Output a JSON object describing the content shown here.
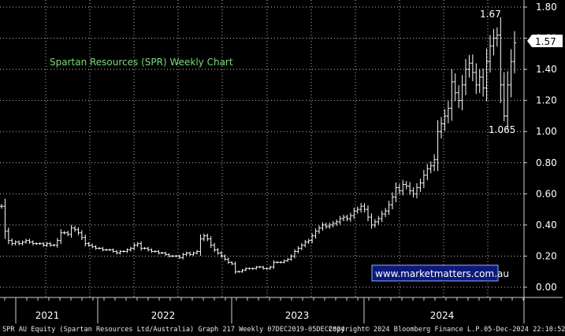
{
  "chart_data": {
    "type": "bar",
    "subtype": "ohlc-weekly",
    "title": "Spartan Resources (SPR) Weekly Chart",
    "watermark": "www.marketmatters.com.au",
    "y_ticks": [
      "1.80",
      "1.60",
      "1.40",
      "1.20",
      "1.00",
      "0.80",
      "0.60",
      "0.40",
      "0.20",
      "0.00"
    ],
    "ylim": [
      -0.06,
      1.86
    ],
    "x_labels": [
      "2021",
      "2022",
      "2023",
      "2024"
    ],
    "last_price_label": "1.57",
    "last_price": 1.57,
    "annotations": [
      {
        "text": "1.67",
        "value": 1.67
      },
      {
        "text": "1.065",
        "value": 1.065
      }
    ],
    "grid": true,
    "closes": [
      0.52,
      0.36,
      0.3,
      0.28,
      0.29,
      0.28,
      0.29,
      0.3,
      0.29,
      0.28,
      0.28,
      0.28,
      0.27,
      0.28,
      0.27,
      0.27,
      0.3,
      0.35,
      0.35,
      0.34,
      0.38,
      0.37,
      0.35,
      0.32,
      0.28,
      0.27,
      0.26,
      0.25,
      0.25,
      0.24,
      0.24,
      0.24,
      0.23,
      0.22,
      0.23,
      0.23,
      0.24,
      0.25,
      0.27,
      0.28,
      0.25,
      0.25,
      0.24,
      0.23,
      0.23,
      0.22,
      0.22,
      0.21,
      0.2,
      0.2,
      0.2,
      0.19,
      0.21,
      0.22,
      0.21,
      0.22,
      0.23,
      0.31,
      0.33,
      0.31,
      0.27,
      0.24,
      0.22,
      0.2,
      0.18,
      0.16,
      0.15,
      0.1,
      0.1,
      0.11,
      0.12,
      0.12,
      0.12,
      0.13,
      0.13,
      0.12,
      0.12,
      0.13,
      0.16,
      0.16,
      0.16,
      0.17,
      0.18,
      0.2,
      0.23,
      0.25,
      0.27,
      0.29,
      0.3,
      0.33,
      0.36,
      0.38,
      0.4,
      0.39,
      0.4,
      0.41,
      0.42,
      0.44,
      0.45,
      0.44,
      0.46,
      0.49,
      0.5,
      0.52,
      0.5,
      0.45,
      0.4,
      0.42,
      0.44,
      0.47,
      0.49,
      0.53,
      0.58,
      0.64,
      0.62,
      0.66,
      0.65,
      0.62,
      0.6,
      0.64,
      0.67,
      0.72,
      0.76,
      0.78,
      0.82,
      1.0,
      1.05,
      1.1,
      1.15,
      1.32,
      1.25,
      1.2,
      1.3,
      1.4,
      1.44,
      1.38,
      1.3,
      1.35,
      1.28,
      1.45,
      1.55,
      1.6,
      1.62,
      1.3,
      1.1,
      1.3,
      1.45,
      1.57
    ]
  },
  "footer": {
    "left": "SPR AU Equity (Spartan Resources Ltd/Australia) Graph 217  Weekly 07DEC2019-05DEC2024",
    "center": "Copyright© 2024 Bloomberg Finance L.P.",
    "right": "05-Dec-2024 22:10:52"
  }
}
